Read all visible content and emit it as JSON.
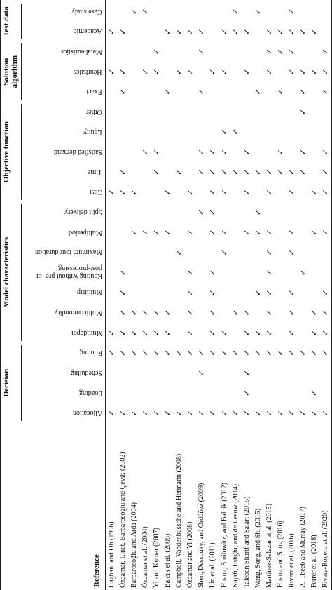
{
  "table": {
    "reference_header": "Reference",
    "groups": [
      {
        "label": "Decision",
        "columns": [
          "Allocation",
          "Loading",
          "Scheduling",
          "Routing"
        ]
      },
      {
        "label": "Model characteristics",
        "columns": [
          "Multidepot",
          "Multicommodity",
          "Multitrip",
          "Routing without pre- or post-processing",
          "Maximum tour duration",
          "Multiperiod",
          "Split delivery"
        ]
      },
      {
        "label": "Objective function",
        "columns": [
          "Cost",
          "Time",
          "Satisfied demand",
          "Equity",
          "Other"
        ]
      },
      {
        "label": "Solution algorithm",
        "columns": [
          "Exact",
          "Heuristics",
          "Metaheuristics"
        ]
      },
      {
        "label": "Test data",
        "columns": [
          "Academic",
          "Case study"
        ]
      }
    ],
    "rows": [
      {
        "reference": "Haghani and Oh (1996)",
        "cells": [
          "✓",
          null,
          null,
          "✓",
          "✓",
          null,
          null,
          null,
          null,
          null,
          null,
          "✓",
          null,
          null,
          null,
          null,
          null,
          "✓",
          null,
          "✓",
          null
        ]
      },
      {
        "reference": "Özdamar, Linet, Barbarosoğlu and Çevik (2002)",
        "cells": [
          "✓",
          null,
          null,
          "✓",
          "✓",
          "✓",
          "✓",
          "✓",
          null,
          null,
          null,
          "✓",
          "✓",
          null,
          null,
          null,
          "✓",
          "✓",
          null,
          "✓",
          null
        ]
      },
      {
        "reference": "Barbarosoğlu and Arda (2004)",
        "cells": [
          "✓",
          null,
          null,
          "✓",
          "✓",
          "✓",
          null,
          null,
          null,
          "✓",
          null,
          "✓",
          null,
          null,
          null,
          null,
          null,
          null,
          null,
          null,
          "✓"
        ]
      },
      {
        "reference": "Özdamar et al. (2004)",
        "cells": [
          "✓",
          null,
          null,
          "✓",
          "✓",
          "✓",
          null,
          null,
          null,
          "✓",
          null,
          null,
          null,
          "✓",
          null,
          null,
          null,
          "✓",
          null,
          null,
          "✓"
        ]
      },
      {
        "reference": "Yi and Kumar (2007)",
        "cells": [
          "✓",
          null,
          null,
          "✓",
          "✓",
          "✓",
          null,
          null,
          null,
          "✓",
          null,
          null,
          "✓",
          "✓",
          null,
          null,
          null,
          "✓",
          "✓",
          null,
          null
        ]
      },
      {
        "reference": "Balcik et al. (2008)",
        "cells": [
          "✓",
          null,
          null,
          "✓",
          "✓",
          "✓",
          null,
          null,
          null,
          "✓",
          null,
          "✓",
          null,
          null,
          null,
          null,
          "✓",
          null,
          null,
          "✓",
          null
        ]
      },
      {
        "reference": "Campbell, Vandenbussche and Hermann (2008)",
        "cells": [
          "✓",
          null,
          null,
          "✓",
          null,
          null,
          null,
          null,
          "✓",
          null,
          null,
          null,
          "✓",
          null,
          null,
          null,
          null,
          "✓",
          null,
          "✓",
          null
        ]
      },
      {
        "reference": "Özdamar and Yi (2008)",
        "cells": [
          "✓",
          null,
          null,
          "✓",
          "✓",
          "✓",
          "✓",
          "✓",
          null,
          "✓",
          null,
          "✓",
          null,
          null,
          null,
          null,
          null,
          "✓",
          null,
          "✓",
          null
        ]
      },
      {
        "reference": "Shen, Dessouky, and Ordóñez (2009)",
        "cells": [
          "✓",
          null,
          "✓",
          "✓",
          null,
          null,
          null,
          null,
          null,
          null,
          "✓",
          null,
          "✓",
          "✓",
          null,
          null,
          "✓",
          null,
          "✓",
          "✓",
          null
        ]
      },
      {
        "reference": "Lin et al. (2011)",
        "cells": [
          "✓",
          null,
          null,
          "✓",
          "✓",
          "✓",
          "✓",
          "✓",
          null,
          "✓",
          "✓",
          "✓",
          "✓",
          "✓",
          null,
          null,
          null,
          "✓",
          null,
          null,
          null
        ]
      },
      {
        "reference": "Huang, Smilowitz, and Balcik (2012)",
        "cells": [
          "✓",
          null,
          null,
          "✓",
          "✓",
          null,
          null,
          null,
          "✓",
          "✓",
          null,
          "✓",
          "✓",
          "✓",
          "✓",
          null,
          null,
          "✓",
          null,
          "✓",
          null
        ]
      },
      {
        "reference": "Najafi, Eshghi, and de Leeuw (2014)",
        "cells": [
          "✓",
          null,
          null,
          "✓",
          null,
          "✓",
          null,
          null,
          null,
          null,
          null,
          null,
          "✓",
          null,
          "✓",
          null,
          null,
          null,
          null,
          "✓",
          "✓"
        ]
      },
      {
        "reference": "Taleban Sharif and Salari (2015)",
        "cells": [
          "✓",
          "✓",
          "✓",
          "✓",
          "✓",
          "✓",
          null,
          null,
          null,
          "✓",
          null,
          "✓",
          "✓",
          "✓",
          null,
          null,
          null,
          "✓",
          null,
          "✓",
          null
        ]
      },
      {
        "reference": "Wang, Song, and Shi (2015)",
        "cells": [
          "✓",
          null,
          null,
          "✓",
          "✓",
          null,
          "✓",
          null,
          null,
          "✓",
          "✓",
          null,
          "✓",
          null,
          null,
          null,
          "✓",
          null,
          null,
          null,
          "✓"
        ]
      },
      {
        "reference": "Martínez-Salazar et al. (2015)",
        "cells": [
          "✓",
          null,
          null,
          "✓",
          "✓",
          "✓",
          "✓",
          "✓",
          "✓",
          "✓",
          null,
          "✓",
          "✓",
          null,
          null,
          null,
          null,
          "✓",
          "✓",
          "✓",
          null
        ]
      },
      {
        "reference": "Huang and Song (2016)",
        "cells": [
          "✓",
          null,
          null,
          "✓",
          null,
          null,
          null,
          null,
          null,
          null,
          null,
          null,
          "✓",
          "✓",
          null,
          null,
          "✓",
          null,
          "✓",
          "✓",
          null
        ]
      },
      {
        "reference": "Rivera et al. (2016)",
        "cells": [
          "✓",
          null,
          null,
          "✓",
          "✓",
          "✓",
          "✓",
          null,
          "✓",
          "✓",
          null,
          "✓",
          "✓",
          null,
          null,
          null,
          null,
          "✓",
          "✓",
          "✓",
          "✓"
        ]
      },
      {
        "reference": "Al Theeb and Murray (2017)",
        "cells": [
          "✓",
          null,
          null,
          "✓",
          null,
          null,
          null,
          "✓",
          null,
          null,
          null,
          null,
          "✓",
          "✓",
          null,
          "✓",
          "✓",
          "✓",
          null,
          "✓",
          null
        ]
      },
      {
        "reference": "Ferrer et al. (2018)",
        "cells": [
          "✓",
          "✓",
          null,
          "✓",
          "✓",
          "✓",
          null,
          null,
          null,
          "✓",
          null,
          "✓",
          null,
          null,
          null,
          null,
          null,
          "✓",
          null,
          "✓",
          null
        ]
      },
      {
        "reference": "Rivera-Royero et al. (2020)",
        "cells": [
          "✓",
          null,
          null,
          "✓",
          "✓",
          "✓",
          "✓",
          null,
          null,
          "✓",
          null,
          "✓",
          "✓",
          "✓",
          null,
          null,
          "✓",
          "✓",
          "✓",
          null,
          null
        ]
      }
    ]
  }
}
